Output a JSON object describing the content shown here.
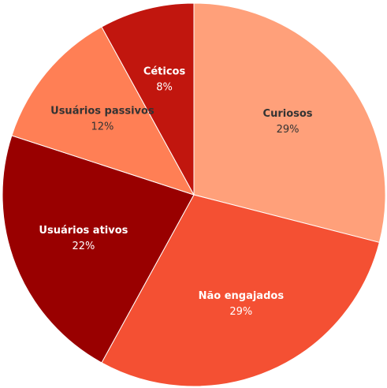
{
  "chart_data": {
    "type": "pie",
    "categories": [
      "Curiosos",
      "Não engajados",
      "Usuários ativos",
      "Usuários passivos",
      "Céticos"
    ],
    "values": [
      29,
      29,
      22,
      12,
      8
    ],
    "value_labels": [
      "29%",
      "29%",
      "22%",
      "12%",
      "8%"
    ],
    "colors": [
      "#FFA07A",
      "#F45033",
      "#990000",
      "#FF7F55",
      "#C1160E"
    ]
  }
}
